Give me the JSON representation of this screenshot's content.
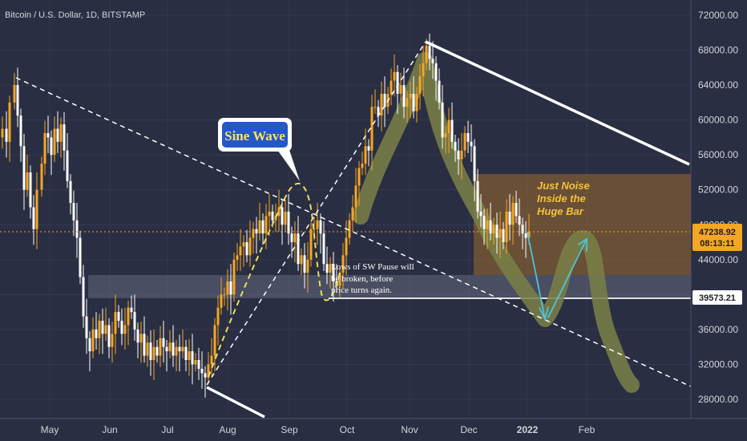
{
  "chart_data": {
    "type": "candlestick",
    "title": "Bitcoin / U.S. Dollar, 1D, BITSTAMP",
    "y_ticks": [
      "72000.00",
      "68000.00",
      "64000.00",
      "60000.00",
      "56000.00",
      "52000.00",
      "48000.00",
      "44000.00",
      "40000.00",
      "36000.00",
      "32000.00",
      "28000.00"
    ],
    "y_range": [
      25000,
      74000
    ],
    "x_ticks": [
      "May",
      "Jun",
      "Jul",
      "Aug",
      "Sep",
      "Oct",
      "Nov",
      "Dec",
      "2022",
      "Feb"
    ],
    "price_path": [
      [
        0,
        58000
      ],
      [
        3,
        59000
      ],
      [
        8,
        57500
      ],
      [
        12,
        62000
      ],
      [
        18,
        64000
      ],
      [
        22,
        60500
      ],
      [
        26,
        57000
      ],
      [
        30,
        52000
      ],
      [
        34,
        54000
      ],
      [
        38,
        50000
      ],
      [
        42,
        47500
      ],
      [
        46,
        52000
      ],
      [
        52,
        55000
      ],
      [
        56,
        58500
      ],
      [
        60,
        58000
      ],
      [
        64,
        56000
      ],
      [
        68,
        59000
      ],
      [
        72,
        57500
      ],
      [
        76,
        59500
      ],
      [
        80,
        56500
      ],
      [
        84,
        53000
      ],
      [
        88,
        50500
      ],
      [
        92,
        48500
      ],
      [
        96,
        46500
      ],
      [
        100,
        42000
      ],
      [
        104,
        37500
      ],
      [
        108,
        35000
      ],
      [
        112,
        33500
      ],
      [
        116,
        36000
      ],
      [
        120,
        35000
      ],
      [
        124,
        37000
      ],
      [
        128,
        35500
      ],
      [
        132,
        36500
      ],
      [
        136,
        34000
      ],
      [
        140,
        35500
      ],
      [
        144,
        38000
      ],
      [
        148,
        37000
      ],
      [
        152,
        35500
      ],
      [
        156,
        36500
      ],
      [
        160,
        38500
      ],
      [
        164,
        38000
      ],
      [
        168,
        36000
      ],
      [
        172,
        34500
      ],
      [
        176,
        35500
      ],
      [
        180,
        33000
      ],
      [
        184,
        34500
      ],
      [
        188,
        32500
      ],
      [
        192,
        34000
      ],
      [
        196,
        33000
      ],
      [
        200,
        35000
      ],
      [
        204,
        34000
      ],
      [
        208,
        33500
      ],
      [
        212,
        34500
      ],
      [
        216,
        33000
      ],
      [
        220,
        34000
      ],
      [
        224,
        33500
      ],
      [
        228,
        34000
      ],
      [
        232,
        32500
      ],
      [
        236,
        33500
      ],
      [
        240,
        32000
      ],
      [
        244,
        32500
      ],
      [
        248,
        31500
      ],
      [
        252,
        31000
      ],
      [
        256,
        30500
      ],
      [
        260,
        32000
      ],
      [
        264,
        33000
      ],
      [
        268,
        36500
      ],
      [
        272,
        38500
      ],
      [
        276,
        40000
      ],
      [
        280,
        40000
      ],
      [
        284,
        41500
      ],
      [
        288,
        40000
      ],
      [
        292,
        44000
      ],
      [
        296,
        44500
      ],
      [
        300,
        45500
      ],
      [
        304,
        46000
      ],
      [
        308,
        44500
      ],
      [
        312,
        46500
      ],
      [
        316,
        47500
      ],
      [
        320,
        47000
      ],
      [
        324,
        48500
      ],
      [
        328,
        47000
      ],
      [
        332,
        49000
      ],
      [
        336,
        49500
      ],
      [
        340,
        48500
      ],
      [
        344,
        49000
      ],
      [
        348,
        50000
      ],
      [
        352,
        48000
      ],
      [
        356,
        49500
      ],
      [
        360,
        47000
      ],
      [
        364,
        46000
      ],
      [
        368,
        47000
      ],
      [
        372,
        43500
      ],
      [
        376,
        44500
      ],
      [
        380,
        42500
      ],
      [
        384,
        44000
      ],
      [
        388,
        47500
      ],
      [
        392,
        47500
      ],
      [
        396,
        48500
      ],
      [
        400,
        47000
      ],
      [
        404,
        43500
      ],
      [
        408,
        42500
      ],
      [
        412,
        43500
      ],
      [
        416,
        41500
      ],
      [
        420,
        41000
      ],
      [
        424,
        42500
      ],
      [
        428,
        44500
      ],
      [
        432,
        46500
      ],
      [
        436,
        48500
      ],
      [
        440,
        50000
      ],
      [
        444,
        52500
      ],
      [
        448,
        54500
      ],
      [
        452,
        55000
      ],
      [
        456,
        57000
      ],
      [
        460,
        56500
      ],
      [
        464,
        61500
      ],
      [
        468,
        61500
      ],
      [
        472,
        60500
      ],
      [
        476,
        63000
      ],
      [
        480,
        61500
      ],
      [
        484,
        63000
      ],
      [
        488,
        64500
      ],
      [
        492,
        65500
      ],
      [
        496,
        63000
      ],
      [
        500,
        64000
      ],
      [
        504,
        61500
      ],
      [
        508,
        62500
      ],
      [
        512,
        63000
      ],
      [
        516,
        61000
      ],
      [
        520,
        63000
      ],
      [
        524,
        65000
      ],
      [
        528,
        66500
      ],
      [
        532,
        68500
      ],
      [
        536,
        67000
      ],
      [
        540,
        66500
      ],
      [
        544,
        64500
      ],
      [
        548,
        62000
      ],
      [
        552,
        58000
      ],
      [
        556,
        58500
      ],
      [
        560,
        60000
      ],
      [
        564,
        57500
      ],
      [
        568,
        56500
      ],
      [
        572,
        55500
      ],
      [
        576,
        56500
      ],
      [
        580,
        58500
      ],
      [
        584,
        57500
      ],
      [
        588,
        57000
      ],
      [
        592,
        53000
      ],
      [
        596,
        49500
      ],
      [
        600,
        49000
      ],
      [
        604,
        47500
      ],
      [
        608,
        48500
      ],
      [
        612,
        47000
      ],
      [
        616,
        48000
      ],
      [
        620,
        46500
      ],
      [
        624,
        47500
      ],
      [
        628,
        46000
      ],
      [
        632,
        49500
      ],
      [
        636,
        48000
      ],
      [
        640,
        50500
      ],
      [
        644,
        49000
      ],
      [
        648,
        48000
      ],
      [
        652,
        47000
      ],
      [
        656,
        46500
      ],
      [
        660,
        47239
      ]
    ],
    "annotations": {
      "sine_wave_label": "Sine Wave",
      "noise_note_line1": "Just Noise",
      "noise_note_line2": "Inside the",
      "noise_note_line3": "Huge Bar",
      "pause_note_line1": "Lows of SW Pause will",
      "pause_note_line2": "be broken, before",
      "pause_note_line3": "price turns again."
    },
    "price_labels": {
      "last_price": "47238.92",
      "countdown": "08:13:11",
      "level": "39573.21"
    },
    "colors": {
      "background": "#2a2e42",
      "up_candle": "#f5a623",
      "down_candle": "#ffffff",
      "trend_line": "#ffffff",
      "sine_wave": "#e8e05a",
      "highlight_path": "#7a8046",
      "noise_box": "#9c6b2e",
      "projection_arrows": "#4fc3d9",
      "last_price_label": "#f5a623",
      "level_label": "#ffffff"
    }
  }
}
